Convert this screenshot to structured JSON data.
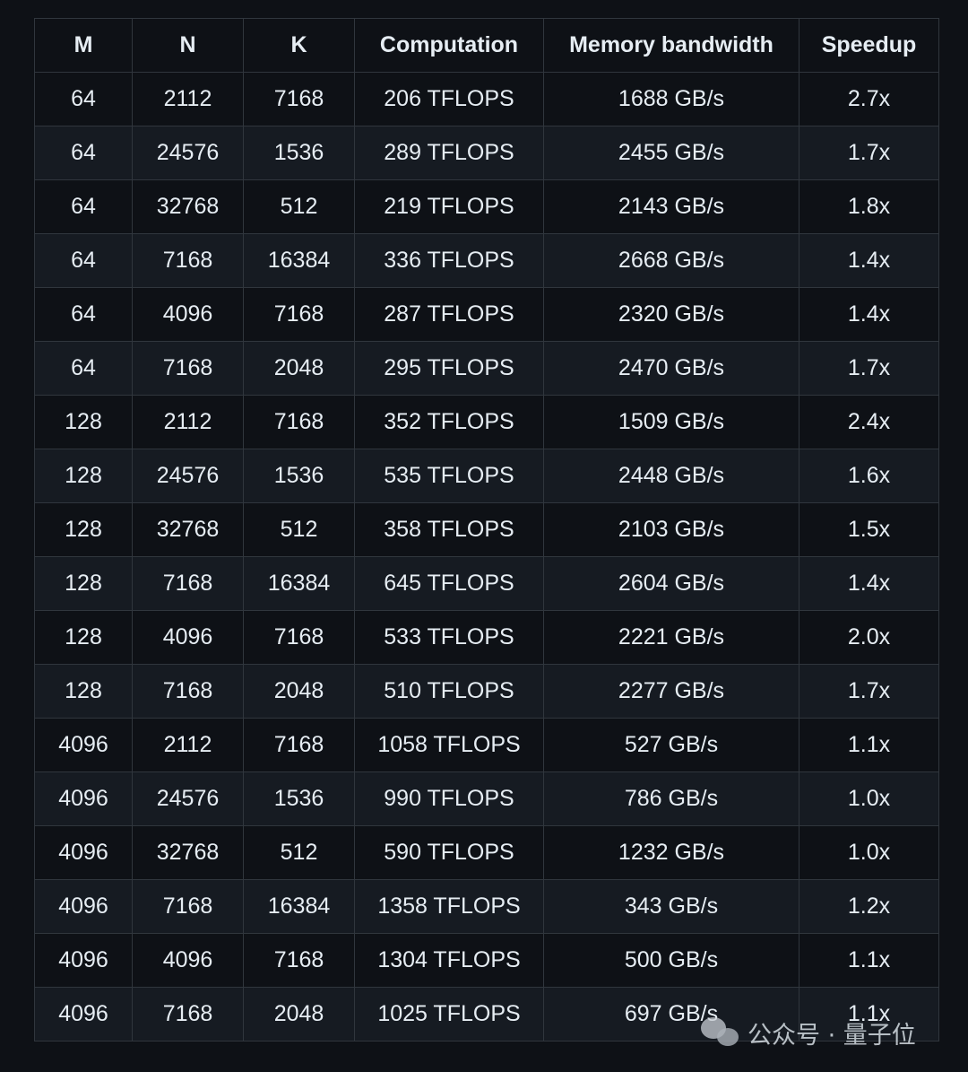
{
  "table": {
    "headers": [
      "M",
      "N",
      "K",
      "Computation",
      "Memory bandwidth",
      "Speedup"
    ],
    "rows": [
      [
        "64",
        "2112",
        "7168",
        "206 TFLOPS",
        "1688 GB/s",
        "2.7x"
      ],
      [
        "64",
        "24576",
        "1536",
        "289 TFLOPS",
        "2455 GB/s",
        "1.7x"
      ],
      [
        "64",
        "32768",
        "512",
        "219 TFLOPS",
        "2143 GB/s",
        "1.8x"
      ],
      [
        "64",
        "7168",
        "16384",
        "336 TFLOPS",
        "2668 GB/s",
        "1.4x"
      ],
      [
        "64",
        "4096",
        "7168",
        "287 TFLOPS",
        "2320 GB/s",
        "1.4x"
      ],
      [
        "64",
        "7168",
        "2048",
        "295 TFLOPS",
        "2470 GB/s",
        "1.7x"
      ],
      [
        "128",
        "2112",
        "7168",
        "352 TFLOPS",
        "1509 GB/s",
        "2.4x"
      ],
      [
        "128",
        "24576",
        "1536",
        "535 TFLOPS",
        "2448 GB/s",
        "1.6x"
      ],
      [
        "128",
        "32768",
        "512",
        "358 TFLOPS",
        "2103 GB/s",
        "1.5x"
      ],
      [
        "128",
        "7168",
        "16384",
        "645 TFLOPS",
        "2604 GB/s",
        "1.4x"
      ],
      [
        "128",
        "4096",
        "7168",
        "533 TFLOPS",
        "2221 GB/s",
        "2.0x"
      ],
      [
        "128",
        "7168",
        "2048",
        "510 TFLOPS",
        "2277 GB/s",
        "1.7x"
      ],
      [
        "4096",
        "2112",
        "7168",
        "1058 TFLOPS",
        "527 GB/s",
        "1.1x"
      ],
      [
        "4096",
        "24576",
        "1536",
        "990 TFLOPS",
        "786 GB/s",
        "1.0x"
      ],
      [
        "4096",
        "32768",
        "512",
        "590 TFLOPS",
        "1232 GB/s",
        "1.0x"
      ],
      [
        "4096",
        "7168",
        "16384",
        "1358 TFLOPS",
        "343 GB/s",
        "1.2x"
      ],
      [
        "4096",
        "4096",
        "7168",
        "1304 TFLOPS",
        "500 GB/s",
        "1.1x"
      ],
      [
        "4096",
        "7168",
        "2048",
        "1025 TFLOPS",
        "697 GB/s",
        "1.1x"
      ]
    ]
  },
  "watermark": {
    "icon": "wechat-icon",
    "text": "公众号 · 量子位"
  },
  "colors": {
    "background": "#0e1116",
    "row_alt": "#161b22",
    "border": "#30363d",
    "text": "#e6edf3"
  }
}
